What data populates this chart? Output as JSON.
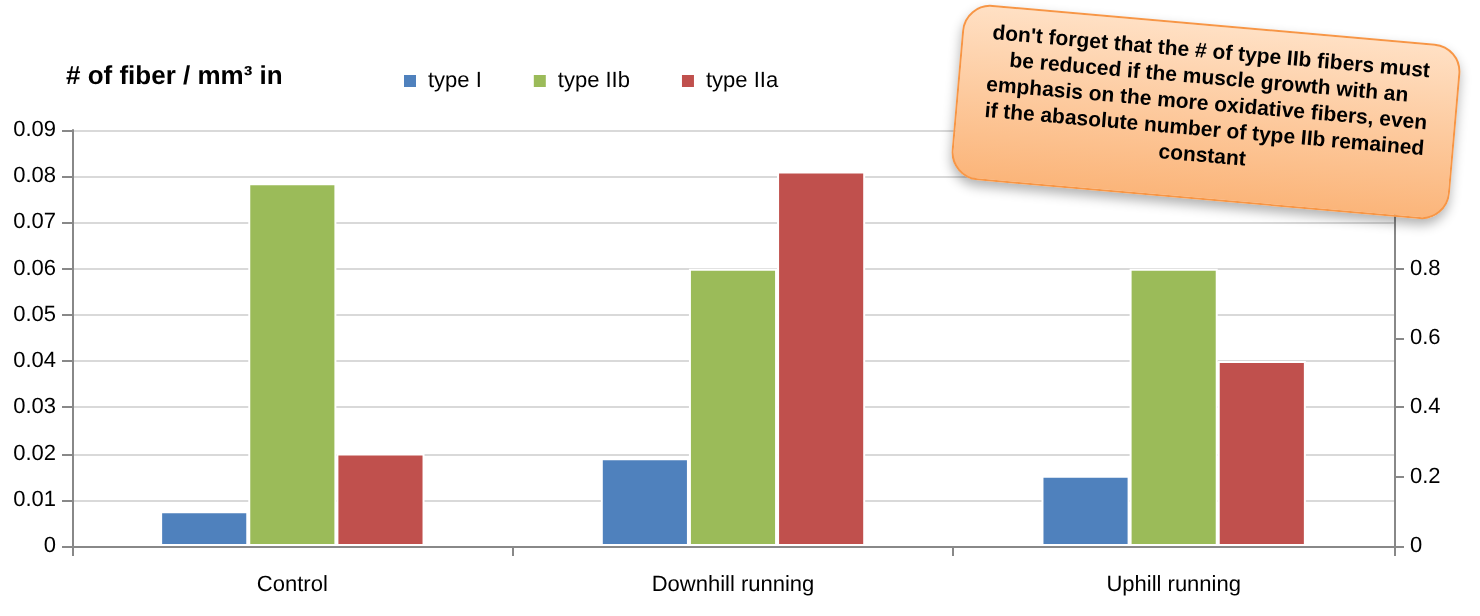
{
  "chart_data": {
    "type": "bar",
    "title": "# of fiber / mm³ in",
    "categories": [
      "Control",
      "Downhill running",
      "Uphill running"
    ],
    "series": [
      {
        "name": "type I",
        "color": "#4f81bd",
        "values": [
          0.0075,
          0.019,
          0.0152
        ]
      },
      {
        "name": "type IIb",
        "color": "#9bbb59",
        "values": [
          0.0785,
          0.06,
          0.06
        ]
      },
      {
        "name": "type IIa",
        "color": "#c0504d",
        "values": [
          0.02,
          0.081,
          0.04
        ]
      }
    ],
    "ylim": [
      0,
      0.09
    ],
    "yticks": [
      0,
      0.01,
      0.02,
      0.03,
      0.04,
      0.05,
      0.06,
      0.07,
      0.08,
      0.09
    ],
    "y2lim": [
      0,
      1.2
    ],
    "y2ticks": [
      0,
      0.2,
      0.4,
      0.6,
      0.8
    ],
    "grid": "y",
    "legend": "top",
    "annotations": [
      "don't forget that the # of type IIb fibers must be  reduced if the muscle growth with an emphasis on the more oxidative fibers, even if the abasolute  number of type IIb remained constant"
    ]
  }
}
